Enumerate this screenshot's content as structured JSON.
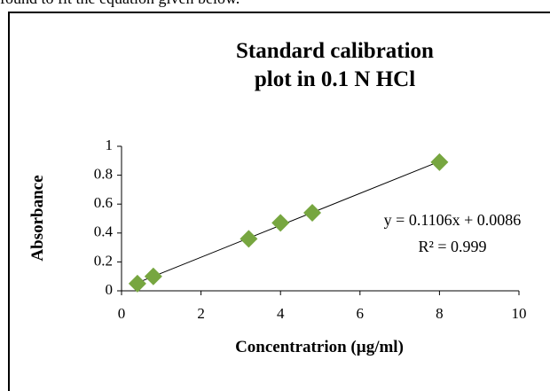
{
  "caption_above": "found to fit the equation given below.",
  "chart_data": {
    "type": "scatter",
    "title": "Standard calibration plot in 0.1 N HCl",
    "x_label": "Concentratrion (µg/ml)",
    "y_label": "Absorbance",
    "x": [
      0.4,
      0.8,
      3.2,
      4,
      4.8,
      8
    ],
    "series": [
      {
        "color": "#77a640",
        "values": [
          0.05,
          0.1,
          0.36,
          0.47,
          0.54,
          0.89
        ]
      }
    ],
    "trendline": true,
    "annotations": [
      "y = 0.1106x + 0.0086",
      "R² = 0.999"
    ],
    "xlim": [
      0,
      10
    ],
    "xticks": [
      0,
      2,
      4,
      6,
      8,
      10
    ],
    "ylim": [
      0,
      1
    ],
    "yticks": [
      0,
      0.2,
      0.4,
      0.6,
      0.8,
      1
    ],
    "grid": false
  }
}
